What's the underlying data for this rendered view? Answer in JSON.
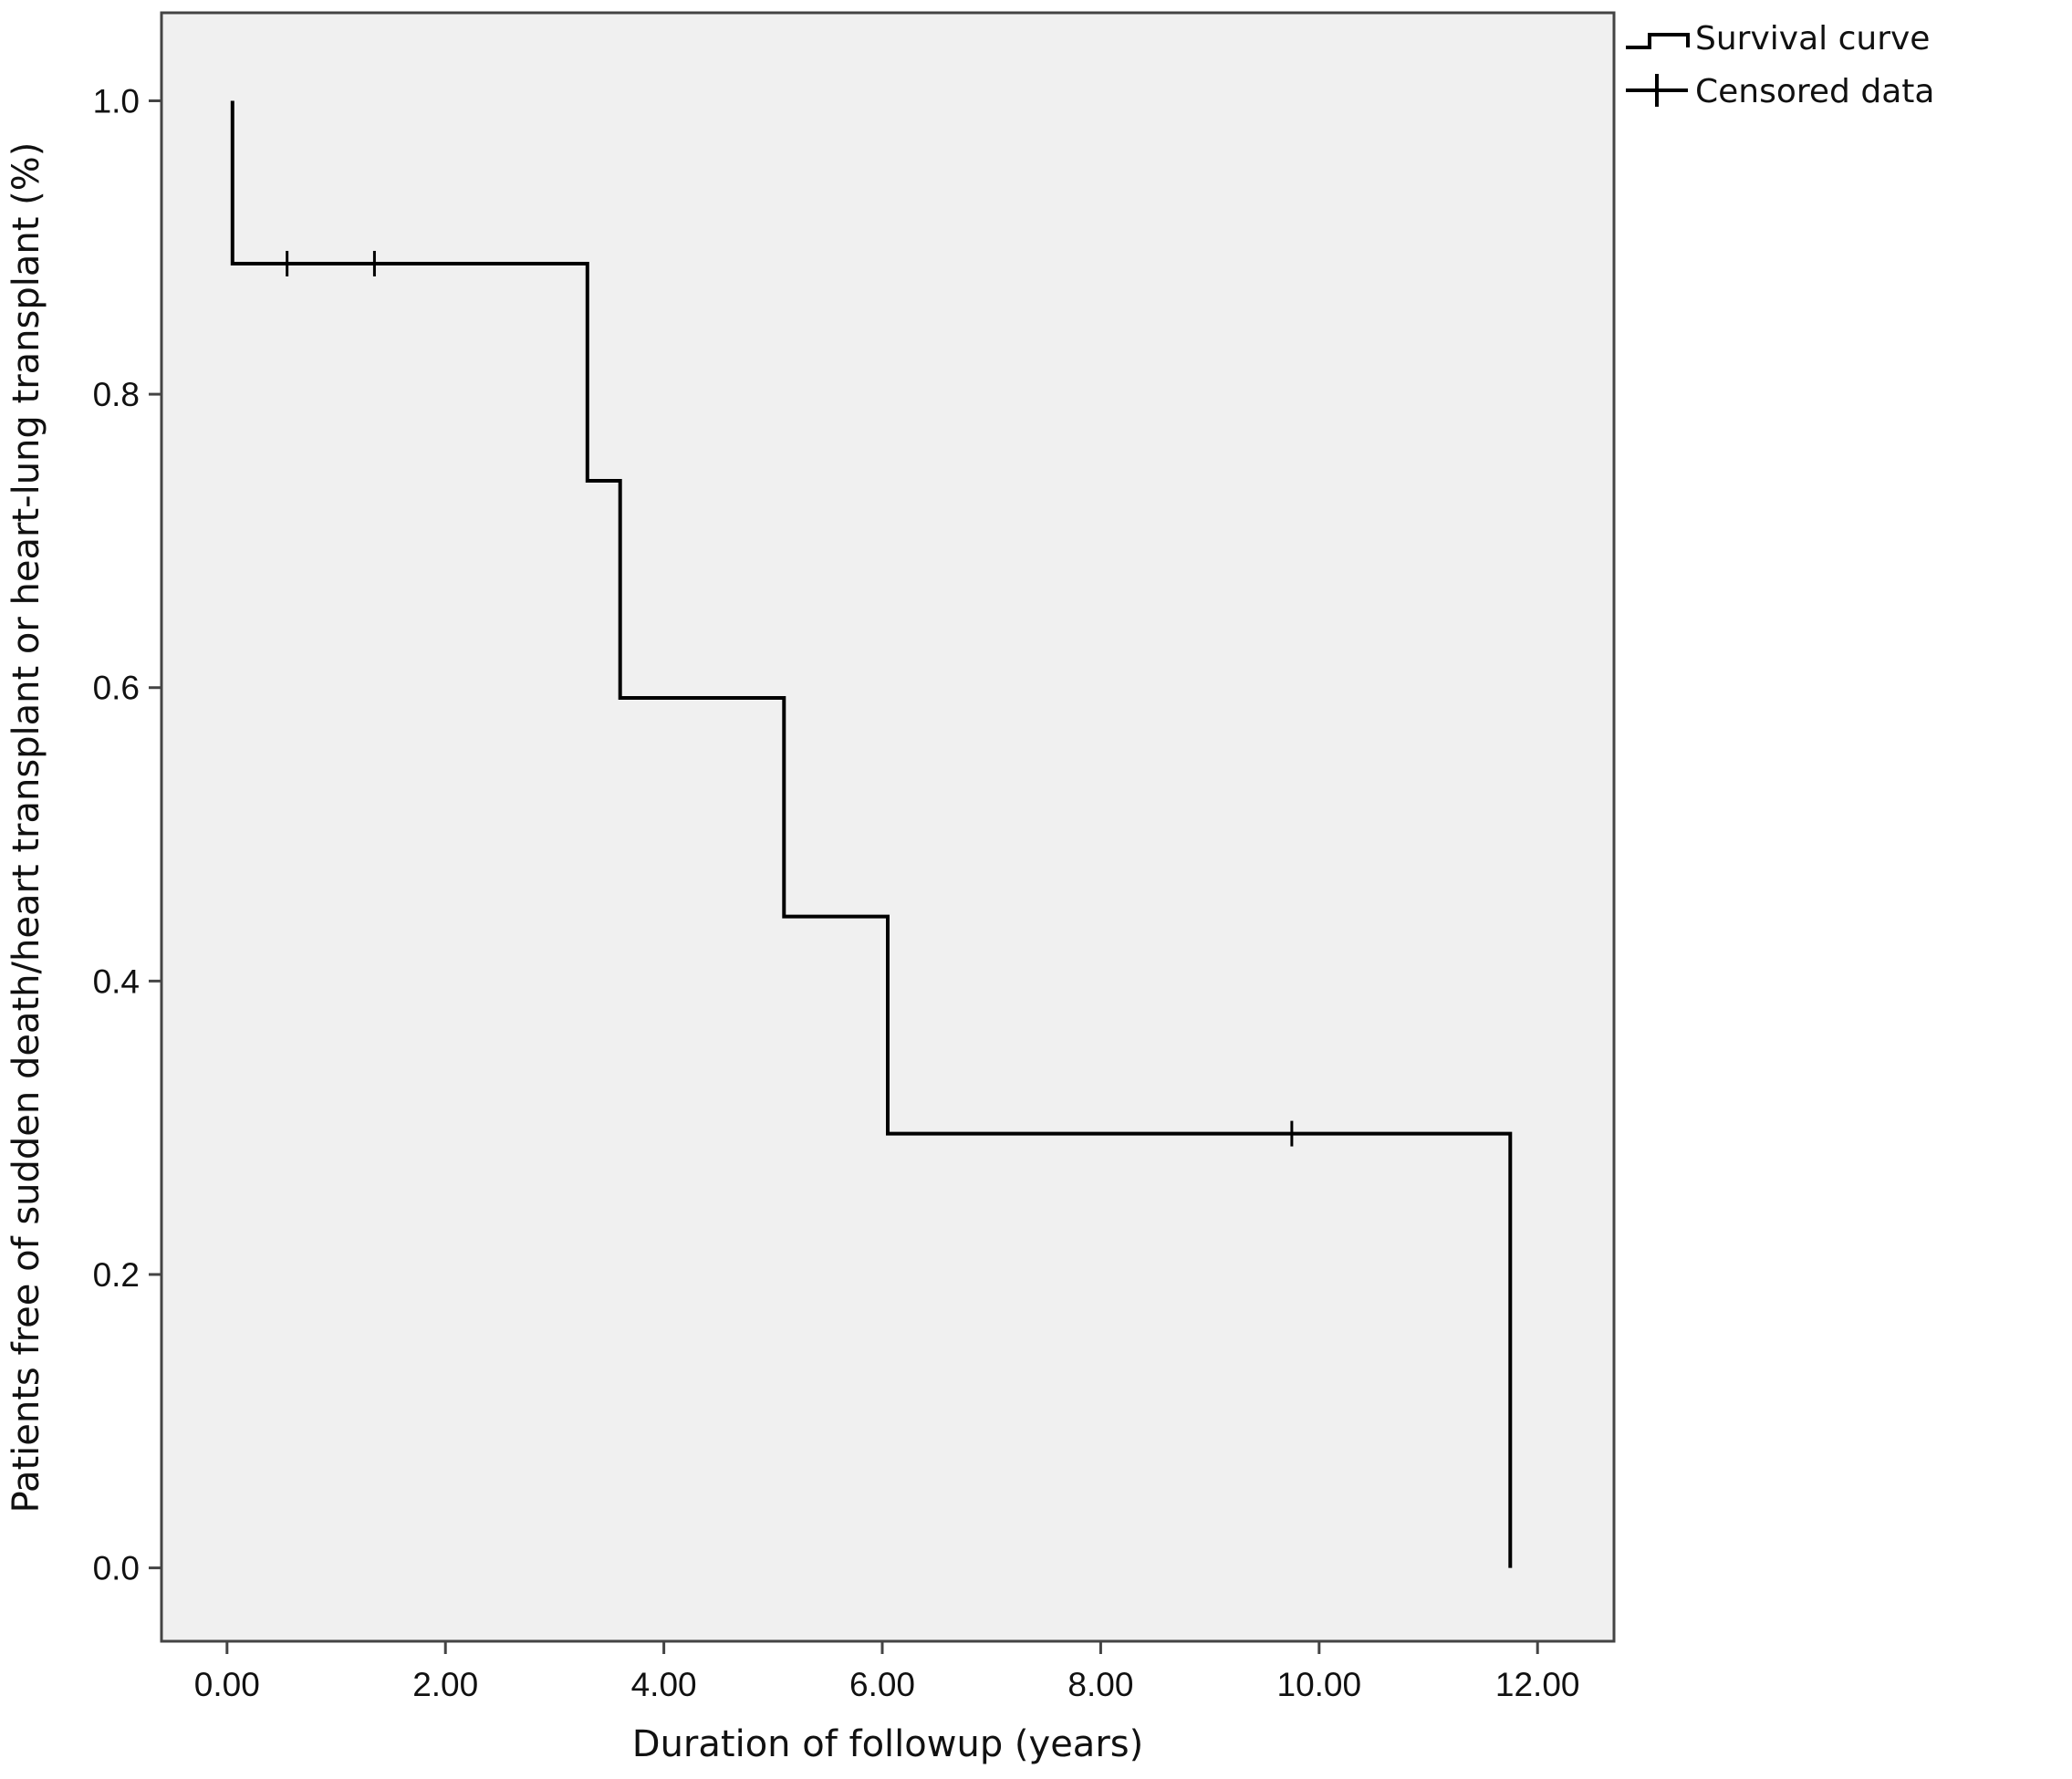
{
  "chart_data": {
    "type": "line",
    "subtype": "kaplan-meier survival (step)",
    "xlabel": "Duration of followup (years)",
    "ylabel": "Patients free of sudden death/heart transplant or heart-lung transplant (%)",
    "xlim": [
      -0.6,
      12.7
    ],
    "ylim": [
      -0.05,
      1.06
    ],
    "x_ticks": [
      0,
      2,
      4,
      6,
      8,
      10,
      12
    ],
    "x_tick_labels": [
      "0.00",
      "2.00",
      "4.00",
      "6.00",
      "8.00",
      "10.00",
      "12.00"
    ],
    "y_ticks": [
      0,
      0.2,
      0.4,
      0.6,
      0.8,
      1.0
    ],
    "y_tick_labels": [
      "0.0",
      "0.2",
      "0.4",
      "0.6",
      "0.8",
      "1.0"
    ],
    "grid": false,
    "legend_position": "outside top-right",
    "plot_background": "#f0f0f0",
    "line_color": "#000000",
    "series": [
      {
        "name": "Survival curve",
        "kind": "step",
        "steps": [
          {
            "x": 0.05,
            "y": 1.0
          },
          {
            "x": 0.05,
            "y": 0.889
          },
          {
            "x": 3.3,
            "y": 0.889
          },
          {
            "x": 3.3,
            "y": 0.741
          },
          {
            "x": 3.6,
            "y": 0.741
          },
          {
            "x": 3.6,
            "y": 0.593
          },
          {
            "x": 5.1,
            "y": 0.593
          },
          {
            "x": 5.1,
            "y": 0.444
          },
          {
            "x": 6.05,
            "y": 0.444
          },
          {
            "x": 6.05,
            "y": 0.296
          },
          {
            "x": 11.75,
            "y": 0.296
          },
          {
            "x": 11.75,
            "y": 0.0
          }
        ]
      },
      {
        "name": "Censored data",
        "kind": "censor-marks",
        "points": [
          {
            "x": 0.55,
            "y": 0.889
          },
          {
            "x": 1.35,
            "y": 0.889
          },
          {
            "x": 9.75,
            "y": 0.296
          }
        ]
      }
    ]
  }
}
